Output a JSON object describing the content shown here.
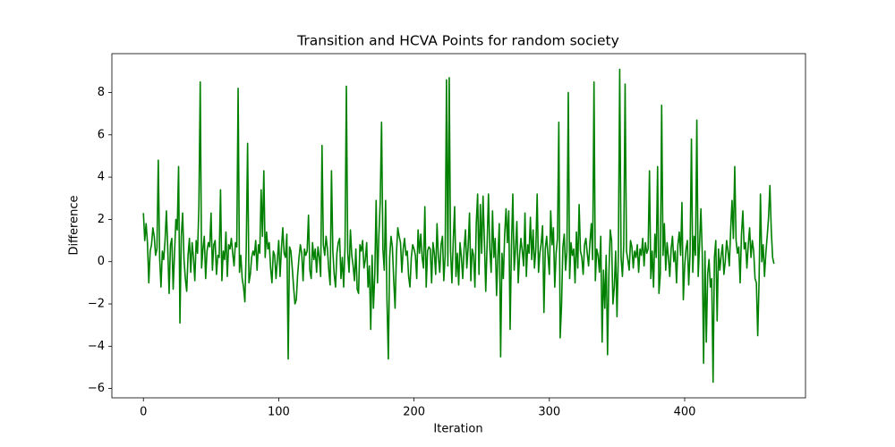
{
  "chart_data": {
    "type": "line",
    "title": "Transition and HCVA Points for random society",
    "x_label": "Iteration",
    "y_label": "Difference",
    "x": [
      0,
      1,
      2,
      3,
      4,
      5,
      6,
      7,
      8,
      9,
      10,
      11,
      12,
      13,
      14,
      15,
      16,
      17,
      18,
      19,
      20,
      21,
      22,
      23,
      24,
      25,
      26,
      27,
      28,
      29,
      30,
      31,
      32,
      33,
      34,
      35,
      36,
      37,
      38,
      39,
      40,
      41,
      42,
      43,
      44,
      45,
      46,
      47,
      48,
      49,
      50,
      51,
      52,
      53,
      54,
      55,
      56,
      57,
      58,
      59,
      60,
      61,
      62,
      63,
      64,
      65,
      66,
      67,
      68,
      69,
      70,
      71,
      72,
      73,
      74,
      75,
      76,
      77,
      78,
      79,
      80,
      81,
      82,
      83,
      84,
      85,
      86,
      87,
      88,
      89,
      90,
      91,
      92,
      93,
      94,
      95,
      96,
      97,
      98,
      99,
      100,
      101,
      102,
      103,
      104,
      105,
      106,
      107,
      108,
      109,
      110,
      111,
      112,
      113,
      114,
      115,
      116,
      117,
      118,
      119,
      120,
      121,
      122,
      123,
      124,
      125,
      126,
      127,
      128,
      129,
      130,
      131,
      132,
      133,
      134,
      135,
      136,
      137,
      138,
      139,
      140,
      141,
      142,
      143,
      144,
      145,
      146,
      147,
      148,
      149,
      150,
      151,
      152,
      153,
      154,
      155,
      156,
      157,
      158,
      159,
      160,
      161,
      162,
      163,
      164,
      165,
      166,
      167,
      168,
      169,
      170,
      171,
      172,
      173,
      174,
      175,
      176,
      177,
      178,
      179,
      180,
      181,
      182,
      183,
      184,
      185,
      186,
      187,
      188,
      189,
      190,
      191,
      192,
      193,
      194,
      195,
      196,
      197,
      198,
      199,
      200,
      201,
      202,
      203,
      204,
      205,
      206,
      207,
      208,
      209,
      210,
      211,
      212,
      213,
      214,
      215,
      216,
      217,
      218,
      219,
      220,
      221,
      222,
      223,
      224,
      225,
      226,
      227,
      228,
      229,
      230,
      231,
      232,
      233,
      234,
      235,
      236,
      237,
      238,
      239,
      240,
      241,
      242,
      243,
      244,
      245,
      246,
      247,
      248,
      249,
      250,
      251,
      252,
      253,
      254,
      255,
      256,
      257,
      258,
      259,
      260,
      261,
      262,
      263,
      264,
      265,
      266,
      267,
      268,
      269,
      270,
      271,
      272,
      273,
      274,
      275,
      276,
      277,
      278,
      279,
      280,
      281,
      282,
      283,
      284,
      285,
      286,
      287,
      288,
      289,
      290,
      291,
      292,
      293,
      294,
      295,
      296,
      297,
      298,
      299,
      300,
      301,
      302,
      303,
      304,
      305,
      306,
      307,
      308,
      309,
      310,
      311,
      312,
      313,
      314,
      315,
      316,
      317,
      318,
      319,
      320,
      321,
      322,
      323,
      324,
      325,
      326,
      327,
      328,
      329,
      330,
      331,
      332,
      333,
      334,
      335,
      336,
      337,
      338,
      339,
      340,
      341,
      342,
      343,
      344,
      345,
      346,
      347,
      348,
      349,
      350,
      351,
      352,
      353,
      354,
      355,
      356,
      357,
      358,
      359,
      360,
      361,
      362,
      363,
      364,
      365,
      366,
      367,
      368,
      369,
      370,
      371,
      372,
      373,
      374,
      375,
      376,
      377,
      378,
      379,
      380,
      381,
      382,
      383,
      384,
      385,
      386,
      387,
      388,
      389,
      390,
      391,
      392,
      393,
      394,
      395,
      396,
      397,
      398,
      399,
      400,
      401,
      402,
      403,
      404,
      405,
      406,
      407,
      408,
      409,
      410,
      411,
      412,
      413,
      414,
      415,
      416,
      417,
      418,
      419,
      420,
      421,
      422,
      423,
      424,
      425,
      426,
      427,
      428,
      429,
      430,
      431,
      432,
      433,
      434,
      435,
      436,
      437,
      438,
      439,
      440,
      441,
      442,
      443,
      444,
      445,
      446,
      447,
      448,
      449,
      450,
      451,
      452,
      453,
      454,
      455,
      456,
      457,
      458,
      459,
      460,
      461,
      462,
      463,
      464,
      465,
      466
    ],
    "series": [
      {
        "color": "#008000",
        "values": [
          2.3,
          1.0,
          1.8,
          0.9,
          -1.0,
          0.5,
          0.8,
          1.6,
          1.2,
          0.3,
          0.6,
          4.8,
          0.2,
          -1.2,
          0.5,
          0.1,
          1.0,
          2.4,
          0.6,
          -1.5,
          0.8,
          1.1,
          -1.3,
          0.4,
          2.0,
          1.5,
          4.5,
          -2.9,
          1.2,
          2.3,
          0.1,
          -0.8,
          -1.4,
          0.3,
          1.1,
          -0.5,
          0.9,
          0.2,
          -0.9,
          1.0,
          0.4,
          2.6,
          8.5,
          -0.3,
          0.6,
          1.2,
          -0.8,
          0.5,
          0.9,
          0.7,
          2.3,
          -0.4,
          0.8,
          1.0,
          -0.6,
          0.3,
          0.2,
          3.4,
          -0.9,
          0.5,
          0.1,
          1.4,
          -0.7,
          0.8,
          0.6,
          1.1,
          0.4,
          -0.2,
          0.9,
          0.7,
          8.2,
          -0.5,
          0.3,
          -0.8,
          -1.2,
          -1.9,
          0.6,
          5.6,
          -1.0,
          -0.6,
          0.2,
          0.5,
          0.3,
          1.0,
          -0.4,
          0.8,
          0.4,
          3.4,
          1.2,
          4.3,
          0.2,
          1.4,
          0.6,
          0.9,
          -0.3,
          -1.0,
          0.5,
          0.3,
          -0.8,
          0.1,
          1.0,
          -0.7,
          0.6,
          1.6,
          0.4,
          0.2,
          1.3,
          -4.6,
          0.7,
          0.5,
          -0.3,
          -1.2,
          -2.0,
          -1.8,
          -0.6,
          0.2,
          0.8,
          0.4,
          -0.9,
          0.6,
          0.3,
          0.5,
          2.2,
          -0.4,
          -0.8,
          0.9,
          0.1,
          0.6,
          -0.5,
          0.7,
          0.2,
          -0.7,
          5.5,
          0.8,
          0.3,
          1.2,
          0.6,
          -0.4,
          -1.1,
          4.3,
          0.5,
          -0.6,
          -1.2,
          0.4,
          0.9,
          1.1,
          -0.8,
          0.2,
          -1.2,
          0.7,
          8.3,
          0.4,
          -0.5,
          1.5,
          0.3,
          -0.2,
          -0.9,
          0.6,
          -1.3,
          -1.5,
          0.8,
          0.5,
          1.0,
          -0.3,
          0.1,
          0.9,
          -1.2,
          -0.2,
          -3.2,
          0.3,
          -2.2,
          -0.6,
          2.9,
          -1.0,
          1.2,
          2.8,
          6.6,
          0.6,
          -0.4,
          2.9,
          -1.8,
          -4.6,
          0.2,
          1.2,
          0.7,
          -0.9,
          -2.2,
          0.4,
          1.6,
          1.2,
          0.9,
          -0.5,
          0.6,
          1.1,
          0.3,
          0.5,
          -0.7,
          -1.2,
          0.2,
          0.8,
          0.6,
          0.3,
          -0.8,
          1.5,
          0.4,
          1.3,
          0.2,
          -0.3,
          2.6,
          -1.2,
          0.5,
          0.7,
          0.6,
          -1.0,
          0.9,
          0.4,
          -0.6,
          1.8,
          0.2,
          -0.5,
          0.8,
          1.2,
          -0.9,
          0.3,
          8.6,
          -0.2,
          8.7,
          0.5,
          -1.0,
          1.0,
          2.6,
          -0.7,
          0.4,
          -1.1,
          0.9,
          0.2,
          -0.8,
          0.6,
          1.5,
          -0.3,
          0.7,
          2.3,
          -0.9,
          0.6,
          0.3,
          -1.2,
          1.8,
          3.2,
          -0.6,
          2.7,
          0.4,
          3.1,
          1.0,
          -1.4,
          0.8,
          3.2,
          0.6,
          -0.5,
          2.4,
          0.2,
          1.1,
          -1.6,
          0.3,
          1.8,
          -4.5,
          0.4,
          -0.8,
          1.3,
          2.5,
          0.9,
          2.4,
          -3.2,
          0.7,
          3.2,
          -0.4,
          0.6,
          1.9,
          -1.0,
          0.3,
          1.1,
          0.5,
          -0.2,
          2.3,
          -0.7,
          0.8,
          0.4,
          2.1,
          0.1,
          1.5,
          -0.3,
          0.6,
          3.2,
          -0.5,
          0.4,
          0.9,
          1.7,
          -2.4,
          0.6,
          1.2,
          0.3,
          -0.6,
          2.4,
          0.8,
          1.6,
          -1.2,
          0.4,
          1.1,
          6.6,
          -3.6,
          -2.1,
          0.7,
          1.3,
          -0.4,
          0.5,
          8.0,
          -0.8,
          0.9,
          0.3,
          0.6,
          -1.0,
          1.4,
          -0.3,
          2.7,
          0.5,
          0.2,
          -0.6,
          0.8,
          1.1,
          0.4,
          -0.2,
          0.9,
          1.8,
          0.1,
          8.5,
          -0.9,
          0.6,
          0.3,
          -0.5,
          1.2,
          -3.8,
          -0.4,
          -2.2,
          0.3,
          -4.4,
          -0.6,
          1.5,
          1.0,
          -2.0,
          -1.2,
          0.5,
          -2.6,
          0.4,
          9.1,
          0.2,
          -0.7,
          0.8,
          8.4,
          0.5,
          0.1,
          -0.4,
          1.0,
          0.7,
          -0.3,
          0.5,
          0.2,
          0.8,
          -0.5,
          0.6,
          0.3,
          1.1,
          -0.2,
          0.9,
          0.4,
          0.6,
          4.3,
          -0.8,
          0.5,
          -1.2,
          1.3,
          0.2,
          4.5,
          -1.5,
          -0.6,
          7.4,
          0.3,
          1.8,
          -0.4,
          0.9,
          0.2,
          -0.7,
          0.6,
          1.2,
          0,
          0.5,
          -1.0,
          0.8,
          1.4,
          0.3,
          2.8,
          -1.8,
          -0.2,
          0.6,
          1.0,
          -1.1,
          0.4,
          5.8,
          -0.5,
          1.2,
          0.3,
          6.7,
          -0.7,
          0.8,
          2.5,
          0.4,
          -4.8,
          0.5,
          -3.8,
          -0.6,
          0.1,
          -1.2,
          -0.8,
          -5.7,
          0.2,
          1.0,
          -2.8,
          0.6,
          -0.4,
          0.3,
          0.8,
          -0.6,
          0,
          1.0,
          0.5,
          -0.2,
          1.5,
          2.9,
          1.1,
          4.5,
          1.0,
          0.4,
          0.7,
          -1.0,
          1.3,
          2.4,
          0.6,
          0.9,
          -0.3,
          0.8,
          1.6,
          0.2,
          1.0,
          0.5,
          -0.8,
          -1.0,
          -3.5,
          -0.9,
          3.2,
          0,
          0.8,
          -0.7,
          0.4,
          1.2,
          2.1,
          3.6,
          1.5,
          0.2,
          -0.1
        ]
      }
    ],
    "xlim": [
      -23.3,
      489.3
    ],
    "xticks": [
      0,
      100,
      200,
      300,
      400
    ],
    "ylim": [
      -6.44,
      9.84
    ],
    "yticks": [
      {
        "value": -6,
        "label": "−6"
      },
      {
        "value": -4,
        "label": "−4"
      },
      {
        "value": -2,
        "label": "−2"
      },
      0,
      2,
      4,
      6,
      8
    ],
    "grid": false
  }
}
